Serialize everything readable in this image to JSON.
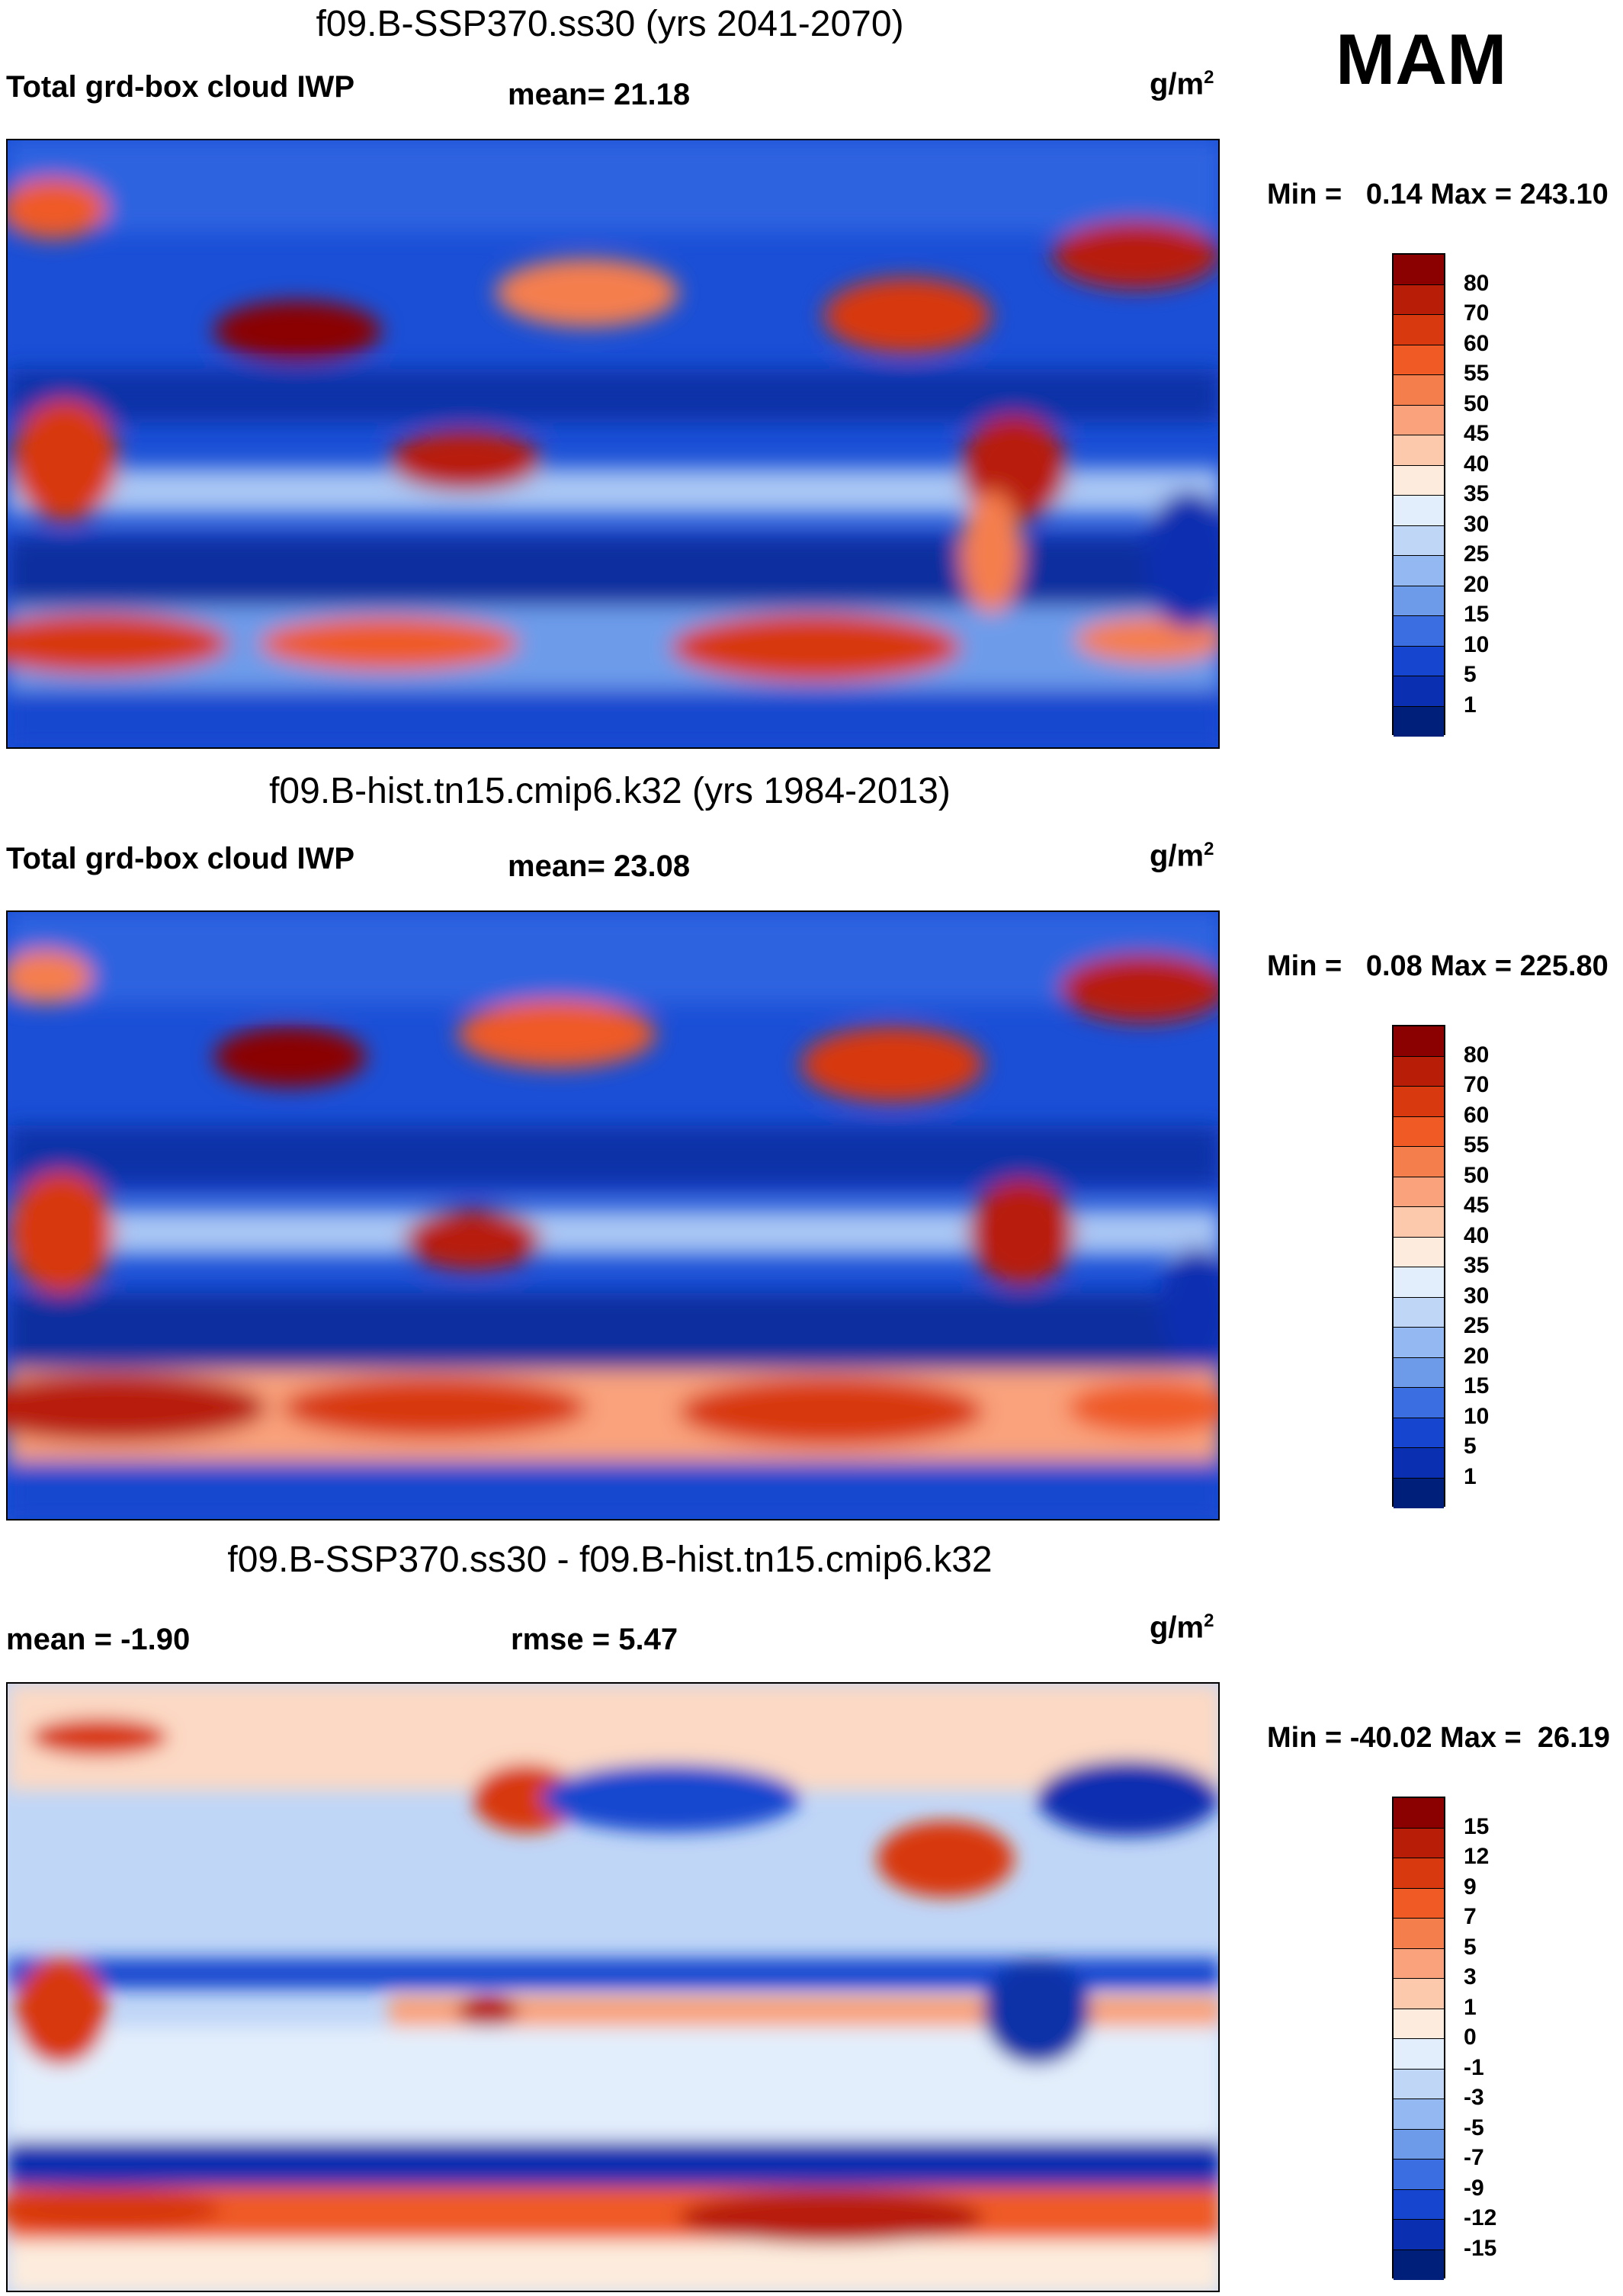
{
  "season": "MAM",
  "panels": [
    {
      "title": "f09.B-SSP370.ss30 (yrs 2041-2070)",
      "left_label": "Total grd-box cloud IWP",
      "center_label": "mean=  21.18",
      "units_base": "g/m",
      "units_exp": "2",
      "minmax": "Min =   0.14 Max = 243.10",
      "colorbar_ticks": [
        "80",
        "70",
        "60",
        "55",
        "50",
        "45",
        "40",
        "35",
        "30",
        "25",
        "20",
        "15",
        "10",
        "5",
        "1"
      ],
      "colorbar_colors": [
        "#8b0000",
        "#b81e07",
        "#d8390f",
        "#ef5a25",
        "#f57e4d",
        "#f9a27b",
        "#fcc9ac",
        "#fdecdd",
        "#e3eefc",
        "#c0d6f7",
        "#94b8f1",
        "#6d9bea",
        "#3b6ee0",
        "#1646cf",
        "#0a2fb0",
        "#001f7a"
      ]
    },
    {
      "title": "f09.B-hist.tn15.cmip6.k32 (yrs 1984-2013)",
      "left_label": "Total grd-box cloud IWP",
      "center_label": "mean=  23.08",
      "units_base": "g/m",
      "units_exp": "2",
      "minmax": "Min =   0.08 Max = 225.80",
      "colorbar_ticks": [
        "80",
        "70",
        "60",
        "55",
        "50",
        "45",
        "40",
        "35",
        "30",
        "25",
        "20",
        "15",
        "10",
        "5",
        "1"
      ],
      "colorbar_colors": [
        "#8b0000",
        "#b81e07",
        "#d8390f",
        "#ef5a25",
        "#f57e4d",
        "#f9a27b",
        "#fcc9ac",
        "#fdecdd",
        "#e3eefc",
        "#c0d6f7",
        "#94b8f1",
        "#6d9bea",
        "#3b6ee0",
        "#1646cf",
        "#0a2fb0",
        "#001f7a"
      ]
    },
    {
      "title": "f09.B-SSP370.ss30 - f09.B-hist.tn15.cmip6.k32",
      "left_label": "mean =  -1.90",
      "center_label": "rmse =    5.47",
      "units_base": "g/m",
      "units_exp": "2",
      "minmax": "Min = -40.02 Max =  26.19",
      "colorbar_ticks": [
        "15",
        "12",
        "9",
        "7",
        "5",
        "3",
        "1",
        "0",
        "-1",
        "-3",
        "-5",
        "-7",
        "-9",
        "-12",
        "-15"
      ],
      "colorbar_colors": [
        "#8b0000",
        "#b81e07",
        "#d8390f",
        "#ef5a25",
        "#f57e4d",
        "#f9a27b",
        "#fcc9ac",
        "#fdecdd",
        "#e3eefc",
        "#c0d6f7",
        "#94b8f1",
        "#6d9bea",
        "#3b6ee0",
        "#1646cf",
        "#0a2fb0",
        "#001f7a"
      ]
    }
  ]
}
